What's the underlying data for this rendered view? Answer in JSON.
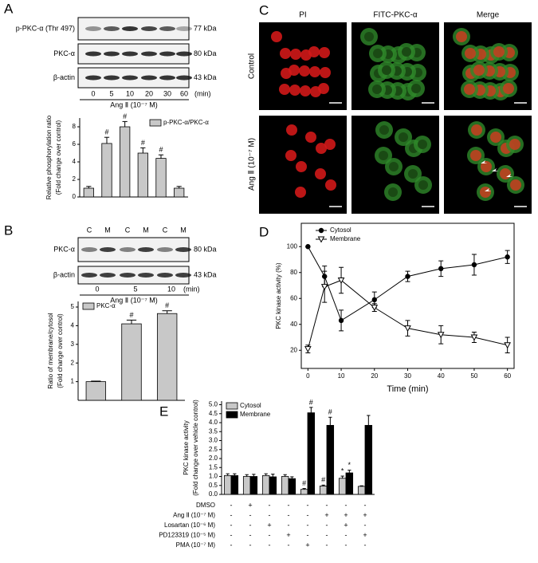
{
  "panels": {
    "a": "A",
    "b": "B",
    "c": "C",
    "d": "D",
    "e": "E"
  },
  "blot_a": {
    "rows": [
      {
        "label": "p-PKC-α (Thr 497)",
        "size": "77 kDa"
      },
      {
        "label": "PKC-α",
        "size": "80 kDa"
      },
      {
        "label": "β-actin",
        "size": "43 kDa"
      }
    ],
    "lanes": [
      "0",
      "5",
      "10",
      "20",
      "30",
      "60"
    ],
    "unit": "(min)",
    "treatment": "Ang Ⅱ  (10⁻⁷ M)"
  },
  "blot_b": {
    "rows": [
      {
        "label": "PKC-α",
        "size": "80 kDa"
      },
      {
        "label": "β-actin",
        "size": "43 kDa"
      }
    ],
    "fractions": [
      "C",
      "M",
      "C",
      "M",
      "C",
      "M"
    ],
    "times": [
      "0",
      "5",
      "10"
    ],
    "unit": "(min)",
    "treatment": "Ang Ⅱ  (10⁻⁷ M)"
  },
  "microscopy": {
    "columns": [
      "PI",
      "FITC-PKC-α",
      "Merge"
    ],
    "rows": [
      "Control",
      "Ang Ⅱ  (10⁻⁷ M)"
    ]
  },
  "chart_data": [
    {
      "type": "bar",
      "y_label": [
        "Relative phosphorylation ratio",
        "(Fold change over control)"
      ],
      "ylim": [
        0,
        9
      ],
      "yticks": [
        0,
        2,
        4,
        6,
        8
      ],
      "legend": "upper right",
      "series": [
        {
          "name": "p-PKC-α/PKC-α",
          "color": "#c8c8c8",
          "values": [
            1.0,
            6.1,
            8.0,
            5.0,
            4.4,
            1.0
          ],
          "errors": [
            0.2,
            0.7,
            0.6,
            0.6,
            0.4,
            0.2
          ],
          "annotations": [
            null,
            "#",
            "#",
            "#",
            "#",
            null
          ]
        }
      ]
    },
    {
      "type": "bar",
      "y_label": [
        "Ratio of membrane/cytosol",
        "(Fold change over control)"
      ],
      "ylim": [
        0,
        5.3
      ],
      "yticks": [
        1,
        2,
        3,
        4,
        5
      ],
      "legend": "upper left",
      "series": [
        {
          "name": "PKC-α",
          "color": "#c8c8c8",
          "values": [
            1.0,
            4.1,
            4.65
          ],
          "errors": [
            0.03,
            0.2,
            0.15
          ],
          "annotations": [
            null,
            "#",
            "#"
          ]
        }
      ]
    },
    {
      "type": "line",
      "x_label": "Time (min)",
      "y_label": [
        "PKC kinase activity (%)"
      ],
      "x": [
        0,
        5,
        10,
        20,
        30,
        40,
        50,
        60
      ],
      "xlim": [
        -2,
        62
      ],
      "xticks": [
        0,
        10,
        20,
        30,
        40,
        50,
        60
      ],
      "ylim": [
        6,
        118
      ],
      "yticks": [
        20,
        40,
        60,
        80,
        100
      ],
      "legend": "upper left",
      "series": [
        {
          "name": "Cytosol",
          "color": "#000000",
          "marker": "circle",
          "values": [
            100,
            77,
            43,
            59,
            77,
            83,
            86,
            92
          ],
          "errors": [
            0,
            8,
            8,
            6,
            4,
            6,
            8,
            5
          ]
        },
        {
          "name": "Membrane",
          "color": "#000000",
          "marker": "triangle-down",
          "values": [
            21,
            69,
            74,
            53,
            37,
            32,
            30,
            24
          ],
          "errors": [
            3,
            12,
            10,
            3,
            6,
            7,
            4,
            6
          ]
        }
      ]
    },
    {
      "type": "grouped_bar",
      "y_label": [
        "PKC kinase activity",
        "(Fold change over vehicle control)"
      ],
      "ylim": [
        0,
        5.2
      ],
      "legend": "upper left",
      "yticks": [
        {
          "value": 0,
          "label": "0.0"
        },
        0.5,
        {
          "value": 1,
          "label": "1.0"
        },
        1.5,
        {
          "value": 2,
          "label": "2.0"
        },
        2.5,
        {
          "value": 3,
          "label": "3.0"
        },
        3.5,
        {
          "value": 4,
          "label": "4.0"
        },
        4.5,
        {
          "value": 5,
          "label": "5.0"
        }
      ],
      "series": [
        {
          "name": "Cytosol",
          "color": "#c8c8c8",
          "values": [
            1.05,
            1.0,
            1.05,
            1.0,
            0.28,
            0.47,
            0.9,
            0.45
          ],
          "errors": [
            0.1,
            0.1,
            0.1,
            0.1,
            0.05,
            0.05,
            0.12,
            0.03
          ],
          "annotations": [
            null,
            null,
            null,
            null,
            "#",
            "#",
            "*",
            null
          ]
        },
        {
          "name": "Membrane",
          "color": "#000000",
          "values": [
            1.05,
            1.0,
            0.98,
            0.88,
            4.55,
            3.85,
            1.2,
            3.85
          ],
          "errors": [
            0.1,
            0.12,
            0.15,
            0.1,
            0.3,
            0.45,
            0.15,
            0.55
          ],
          "annotations": [
            null,
            null,
            null,
            null,
            "#",
            "#",
            "*",
            null
          ]
        }
      ],
      "conditions": [
        {
          "label": "DMSO",
          "signs": [
            "-",
            "+",
            "-",
            "-",
            "-",
            "-",
            "-",
            "-"
          ]
        },
        {
          "label": "Ang Ⅱ (10⁻⁷ M)",
          "signs": [
            "-",
            "-",
            "-",
            "-",
            "-",
            "+",
            "+",
            "+"
          ]
        },
        {
          "label": "Losartan (10⁻⁶ M)",
          "signs": [
            "-",
            "-",
            "+",
            "-",
            "-",
            "-",
            "+",
            "-"
          ]
        },
        {
          "label": "PD123319 (10⁻⁵ M)",
          "signs": [
            "-",
            "-",
            "-",
            "+",
            "-",
            "-",
            "-",
            "+"
          ]
        },
        {
          "label": "PMA (10⁻⁷ M)",
          "signs": [
            "-",
            "-",
            "-",
            "-",
            "+",
            "-",
            "-",
            "-"
          ]
        }
      ]
    }
  ]
}
